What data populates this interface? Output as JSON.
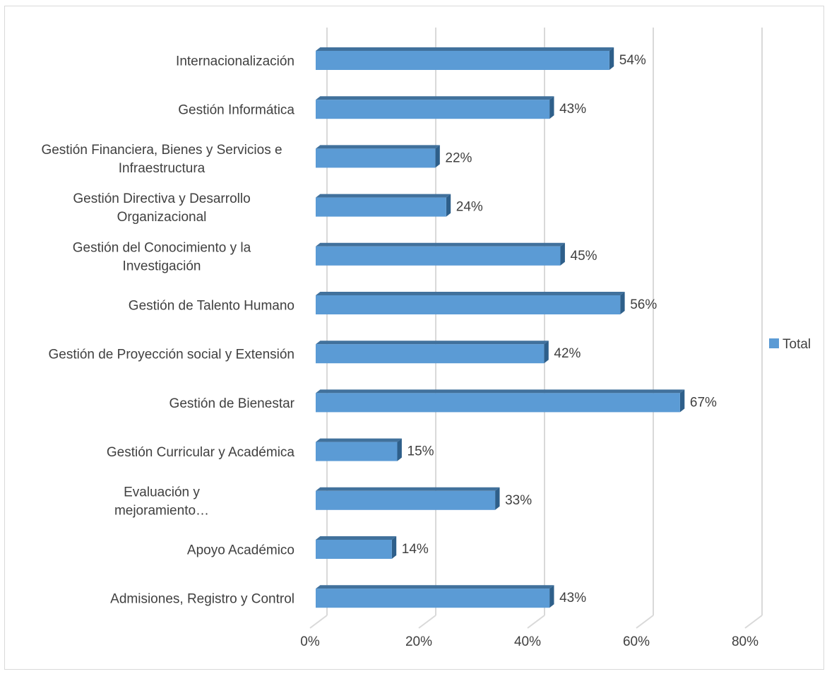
{
  "chart_data": {
    "type": "bar",
    "orientation": "horizontal",
    "style": "3d",
    "categories": [
      [
        "Internacionalización"
      ],
      [
        "Gestión Informática"
      ],
      [
        "Gestión Financiera, Bienes y Servicios e",
        "Infraestructura"
      ],
      [
        "Gestión Directiva y Desarrollo",
        "Organizacional"
      ],
      [
        "Gestión del Conocimiento y la",
        "Investigación"
      ],
      [
        "Gestión de Talento Humano"
      ],
      [
        "Gestión de Proyección social y Extensión"
      ],
      [
        "Gestión de Bienestar"
      ],
      [
        "Gestión Curricular y Académica"
      ],
      [
        "Evaluación y",
        "mejoramiento…"
      ],
      [
        "Apoyo Académico"
      ],
      [
        "Admisiones, Registro y Control"
      ]
    ],
    "values": [
      54,
      43,
      22,
      24,
      45,
      56,
      42,
      67,
      15,
      33,
      14,
      43
    ],
    "data_labels": [
      "54%",
      "43%",
      "22%",
      "24%",
      "45%",
      "56%",
      "42%",
      "67%",
      "15%",
      "33%",
      "14%",
      "43%"
    ],
    "xlim": [
      0,
      80
    ],
    "x_ticks": [
      "0%",
      "20%",
      "40%",
      "60%",
      "80%"
    ],
    "x_tick_values": [
      0,
      20,
      40,
      60,
      80
    ],
    "gridlines": true,
    "legend_position": "right",
    "series": [
      {
        "name": "Total",
        "color": "#5b9bd5"
      }
    ],
    "colors": {
      "front": "#5b9bd5",
      "top": "#41719c",
      "side": "#2e5f8a",
      "grid": "#d9d9d9",
      "text": "#404040"
    }
  }
}
